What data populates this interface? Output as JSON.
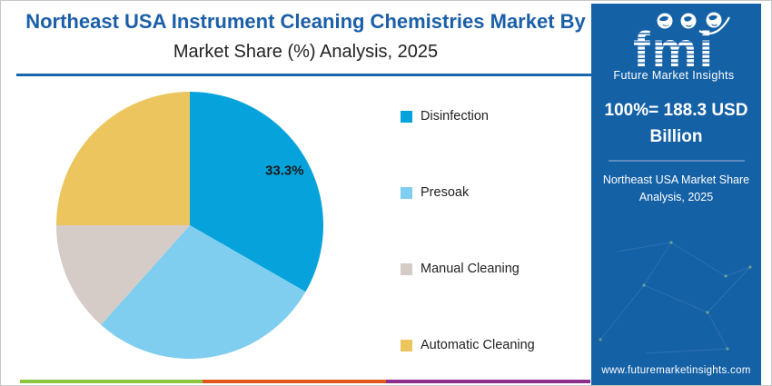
{
  "header": {
    "title_line1": "Northeast USA Instrument Cleaning Chemistries Market By",
    "title_line2": "Market Share (%) Analysis, 2025",
    "accent_color": "#1767ac"
  },
  "chart_data": {
    "type": "pie",
    "title": "Northeast USA Instrument Cleaning Chemistries Market By Market Share (%) Analysis, 2025",
    "direction": "clockwise",
    "start_angle_deg": 0,
    "legend_position": "right",
    "slices": [
      {
        "name": "Disinfection",
        "value": 33.3,
        "color": "#05a2dc",
        "label": "33.3%"
      },
      {
        "name": "Presoak",
        "value": 28.3,
        "color": "#7fcef0",
        "label": ""
      },
      {
        "name": "Manual Cleaning",
        "value": 13.4,
        "color": "#d5cbc7",
        "label": ""
      },
      {
        "name": "Automatic Cleaning",
        "value": 25.0,
        "color": "#ecc55e",
        "label": ""
      }
    ],
    "note": "Only the Disinfection slice shows an on-chart data label (33.3%); remaining slice values estimated from arc angles."
  },
  "sidebar": {
    "background": "#1561a6",
    "logo": {
      "text": "fmi",
      "subtext": "Future Market Insights"
    },
    "headline": "100%= 188.3 USD Billion",
    "subheadline": "Northeast USA Market Share Analysis, 2025",
    "website": "www.futuremarketinsights.com"
  },
  "footer_bar": {
    "colors": [
      "#8cc63e",
      "#e2571e",
      "#8e2e8c"
    ]
  }
}
